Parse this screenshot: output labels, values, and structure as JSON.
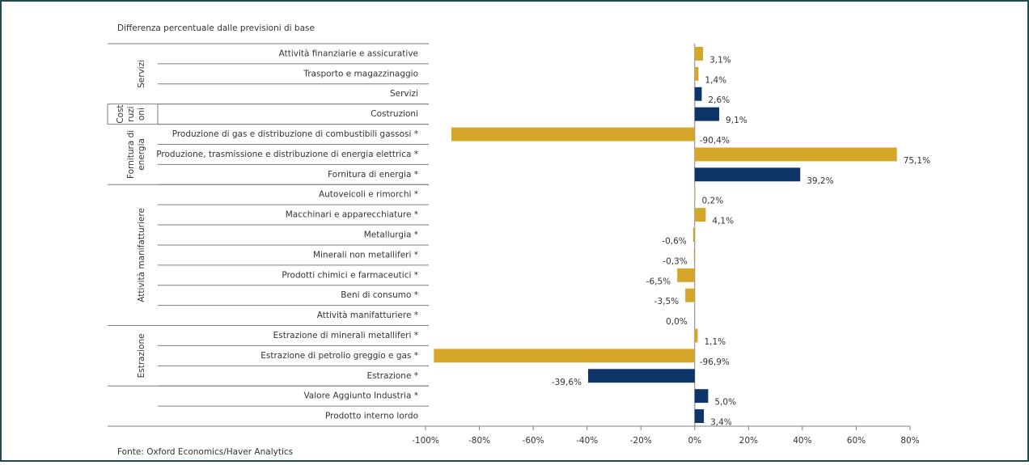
{
  "chart_data": {
    "type": "bar",
    "orientation": "horizontal",
    "title": "Differenza percentuale dalle previsioni di base",
    "source": "Fonte: Oxford Economics/Haver Analytics",
    "categories": [
      "Attività finanziarie e assicurative",
      "Trasporto e magazzinaggio",
      "Servizi",
      "Costruzioni",
      "Produzione di gas e distribuzione di combustibili gassosi *",
      "Produzione, trasmissione e distribuzione di energia elettrica *",
      "Fornitura di energia  *",
      "Autoveicoli e rimorchi *",
      "Macchinari e apparecchiature *",
      "Metallurgia *",
      "Minerali non metalliferi *",
      "Prodotti chimici e farmaceutici *",
      "Beni di consumo *",
      "Attività manifatturiere *",
      "Estrazione di minerali metalliferi *",
      "Estrazione di petrolio greggio e gas  *",
      "Estrazione *",
      "Valore Aggiunto Industria *",
      "Prodotto interno lordo"
    ],
    "values": [
      3.1,
      1.4,
      2.6,
      9.1,
      -90.4,
      75.1,
      39.2,
      0.2,
      4.1,
      -0.6,
      -0.3,
      -6.5,
      -3.5,
      0.0,
      1.1,
      -96.9,
      -39.6,
      5.0,
      3.4
    ],
    "value_labels": [
      "3,1%",
      "1,4%",
      "2,6%",
      "9,1%",
      "-90,4%",
      "75,1%",
      "39,2%",
      "0,2%",
      "4,1%",
      "-0,6%",
      "-0,3%",
      "-6,5%",
      "-3,5%",
      "0,0%",
      "1,1%",
      "-96,9%",
      "-39,6%",
      "5,0%",
      "3,4%"
    ],
    "colors": [
      "#d4a62a",
      "#d4a62a",
      "#0d3568",
      "#0d3568",
      "#d4a62a",
      "#d4a62a",
      "#0d3568",
      "#d4a62a",
      "#d4a62a",
      "#d4a62a",
      "#d4a62a",
      "#d4a62a",
      "#d4a62a",
      "#0d3568",
      "#d4a62a",
      "#d4a62a",
      "#0d3568",
      "#0d3568",
      "#0d3568"
    ],
    "groups": [
      {
        "lines": [
          "Servizi"
        ],
        "count": 3
      },
      {
        "lines": [
          "Cost",
          "ruzi",
          "oni"
        ],
        "count": 1
      },
      {
        "lines": [
          "Fornitura di",
          "energia"
        ],
        "count": 3
      },
      {
        "lines": [
          "Attività manifatturiere"
        ],
        "count": 7
      },
      {
        "lines": [
          "Estrazione"
        ],
        "count": 3
      }
    ],
    "xlim": [
      -100,
      80
    ],
    "xticks": [
      {
        "value": -100,
        "label": "-100%"
      },
      {
        "value": -80,
        "label": "-80%"
      },
      {
        "value": -60,
        "label": "-60%"
      },
      {
        "value": -40,
        "label": "-40%"
      },
      {
        "value": -20,
        "label": "-20%"
      },
      {
        "value": 0,
        "label": "0%"
      },
      {
        "value": 20,
        "label": "20%"
      },
      {
        "value": 40,
        "label": "40%"
      },
      {
        "value": 60,
        "label": "60%"
      },
      {
        "value": 80,
        "label": "80%"
      }
    ]
  }
}
